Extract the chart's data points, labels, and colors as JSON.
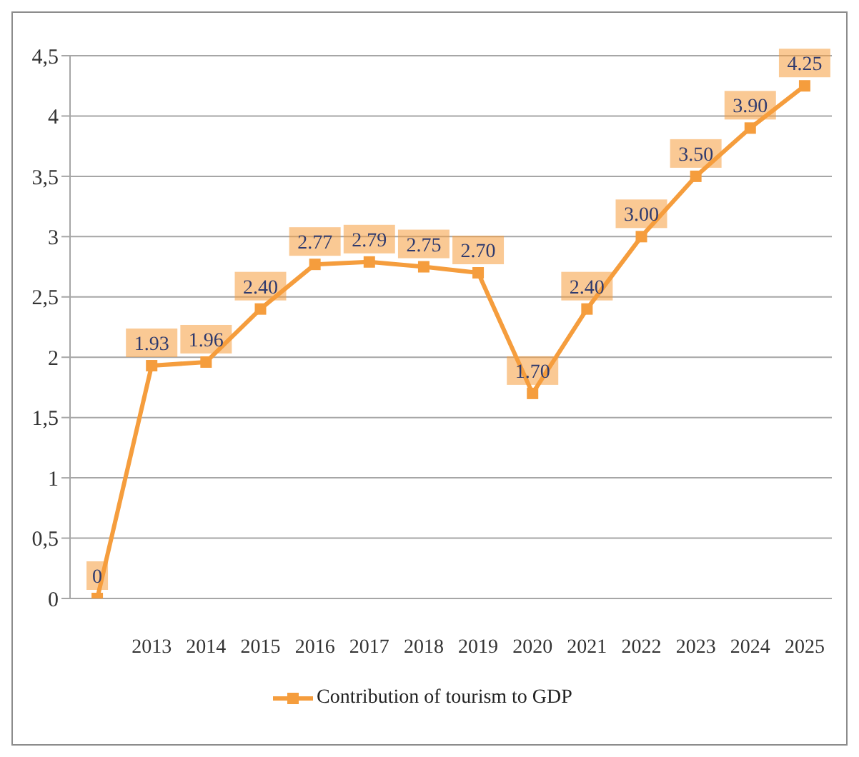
{
  "chart_data": {
    "type": "line",
    "categories": [
      null,
      "2013",
      "2014",
      "2015",
      "2016",
      "2017",
      "2018",
      "2019",
      "2020",
      "2021",
      "2022",
      "2023",
      "2024",
      "2025"
    ],
    "series": [
      {
        "name": "Contribution of tourism to GDP",
        "color": "#f59d3d",
        "values": [
          0,
          1.93,
          1.96,
          2.4,
          2.77,
          2.79,
          2.75,
          2.7,
          1.7,
          2.4,
          3.0,
          3.5,
          3.9,
          4.25
        ],
        "value_labels": [
          "0",
          "1.93",
          "1.96",
          "2.40",
          "2.77",
          "2.79",
          "2.75",
          "2.70",
          "1.70",
          "2.40",
          "3.00",
          "3.50",
          "3.90",
          "4.25"
        ]
      }
    ],
    "ylim": [
      0,
      4.5
    ],
    "yticks": [
      0,
      {
        "value": 0.5,
        "label": "0,5"
      },
      1,
      {
        "value": 1.5,
        "label": "1,5"
      },
      2,
      {
        "value": 2.5,
        "label": "2,5"
      },
      3,
      {
        "value": 3.5,
        "label": "3,5"
      },
      4,
      {
        "value": 4.5,
        "label": "4,5"
      }
    ],
    "grid": "y",
    "legend": "bottom",
    "marker": "square"
  }
}
